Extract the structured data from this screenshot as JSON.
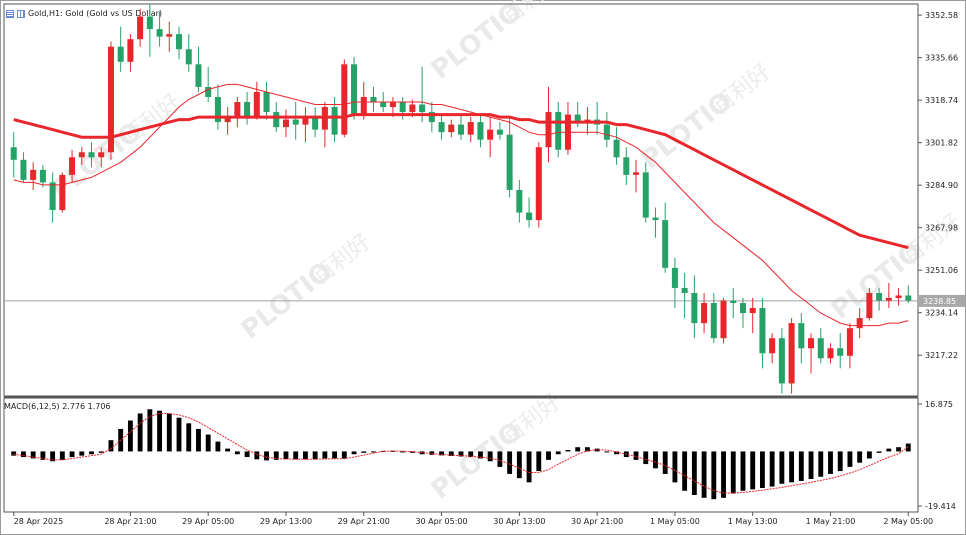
{
  "header": {
    "title": "Gold,H1:  Gold (Gold vs US Dollar)",
    "icons": [
      "list-icon",
      "bars-icon"
    ]
  },
  "watermark": {
    "brand": "PLOTIO",
    "cn": "百利好"
  },
  "macd": {
    "label": "MACD(6,12,5) 2.776 1.706",
    "histogram_color": "#000000",
    "signal_color": "#e8262c"
  },
  "colors": {
    "bull": "#e8262c",
    "bear": "#26a269",
    "ma_slow": "#e8262c",
    "ma_fast": "#e8262c",
    "price_line": "#a0a0a0",
    "grid": "#dddddd"
  },
  "chart_data": {
    "type": "candlestick",
    "price_axis": {
      "ticks": [
        3352.58,
        3335.66,
        3318.74,
        3301.82,
        3284.9,
        3267.98,
        3251.06,
        3234.14,
        3217.22
      ],
      "tick_labels": [
        "3352.58",
        "3335.66",
        "3318.74",
        "3301.82",
        "3284.90",
        "3267.98",
        "3251.06",
        "3234.14",
        "3217.22"
      ],
      "ylim": [
        3201,
        3357
      ]
    },
    "current_price": 3238.85,
    "current_price_label": "3238.85",
    "time_axis": {
      "labels": [
        "28 Apr 2025",
        "28 Apr 21:00",
        "29 Apr 05:00",
        "29 Apr 13:00",
        "29 Apr 21:00",
        "30 Apr 05:00",
        "30 Apr 13:00",
        "30 Apr 21:00",
        "1 May 05:00",
        "1 May 13:00",
        "1 May 21:00",
        "2 May 05:00"
      ],
      "label_bar_index": [
        0,
        12,
        20,
        28,
        36,
        44,
        52,
        60,
        68,
        76,
        84,
        92
      ]
    },
    "candles": [
      {
        "o": 3300,
        "h": 3306,
        "l": 3288,
        "c": 3295
      },
      {
        "o": 3295,
        "h": 3298,
        "l": 3286,
        "c": 3287
      },
      {
        "o": 3287,
        "h": 3294,
        "l": 3283,
        "c": 3291
      },
      {
        "o": 3291,
        "h": 3293,
        "l": 3284,
        "c": 3286
      },
      {
        "o": 3286,
        "h": 3290,
        "l": 3270,
        "c": 3275
      },
      {
        "o": 3275,
        "h": 3290,
        "l": 3274,
        "c": 3289
      },
      {
        "o": 3289,
        "h": 3299,
        "l": 3286,
        "c": 3296
      },
      {
        "o": 3296,
        "h": 3300,
        "l": 3293,
        "c": 3298
      },
      {
        "o": 3298,
        "h": 3302,
        "l": 3292,
        "c": 3296
      },
      {
        "o": 3296,
        "h": 3300,
        "l": 3292,
        "c": 3298
      },
      {
        "o": 3298,
        "h": 3342,
        "l": 3295,
        "c": 3340
      },
      {
        "o": 3340,
        "h": 3348,
        "l": 3330,
        "c": 3334
      },
      {
        "o": 3334,
        "h": 3345,
        "l": 3330,
        "c": 3343
      },
      {
        "o": 3343,
        "h": 3355,
        "l": 3340,
        "c": 3352
      },
      {
        "o": 3352,
        "h": 3357,
        "l": 3336,
        "c": 3347
      },
      {
        "o": 3347,
        "h": 3354,
        "l": 3340,
        "c": 3344
      },
      {
        "o": 3344,
        "h": 3350,
        "l": 3338,
        "c": 3345
      },
      {
        "o": 3345,
        "h": 3348,
        "l": 3335,
        "c": 3339
      },
      {
        "o": 3339,
        "h": 3345,
        "l": 3330,
        "c": 3333
      },
      {
        "o": 3333,
        "h": 3340,
        "l": 3322,
        "c": 3324
      },
      {
        "o": 3324,
        "h": 3332,
        "l": 3318,
        "c": 3320
      },
      {
        "o": 3320,
        "h": 3325,
        "l": 3307,
        "c": 3310
      },
      {
        "o": 3310,
        "h": 3316,
        "l": 3305,
        "c": 3312
      },
      {
        "o": 3312,
        "h": 3320,
        "l": 3308,
        "c": 3318
      },
      {
        "o": 3318,
        "h": 3322,
        "l": 3309,
        "c": 3312
      },
      {
        "o": 3312,
        "h": 3326,
        "l": 3311,
        "c": 3322
      },
      {
        "o": 3322,
        "h": 3326,
        "l": 3311,
        "c": 3314
      },
      {
        "o": 3314,
        "h": 3318,
        "l": 3306,
        "c": 3308
      },
      {
        "o": 3308,
        "h": 3315,
        "l": 3304,
        "c": 3311
      },
      {
        "o": 3311,
        "h": 3318,
        "l": 3303,
        "c": 3309
      },
      {
        "o": 3309,
        "h": 3316,
        "l": 3302,
        "c": 3312
      },
      {
        "o": 3312,
        "h": 3316,
        "l": 3304,
        "c": 3307
      },
      {
        "o": 3307,
        "h": 3318,
        "l": 3300,
        "c": 3316
      },
      {
        "o": 3316,
        "h": 3320,
        "l": 3302,
        "c": 3305
      },
      {
        "o": 3305,
        "h": 3335,
        "l": 3304,
        "c": 3333
      },
      {
        "o": 3333,
        "h": 3336,
        "l": 3311,
        "c": 3313
      },
      {
        "o": 3313,
        "h": 3326,
        "l": 3311,
        "c": 3320
      },
      {
        "o": 3320,
        "h": 3324,
        "l": 3314,
        "c": 3318
      },
      {
        "o": 3318,
        "h": 3322,
        "l": 3314,
        "c": 3316
      },
      {
        "o": 3316,
        "h": 3320,
        "l": 3312,
        "c": 3318
      },
      {
        "o": 3318,
        "h": 3320,
        "l": 3311,
        "c": 3314
      },
      {
        "o": 3314,
        "h": 3319,
        "l": 3312,
        "c": 3317
      },
      {
        "o": 3317,
        "h": 3332,
        "l": 3310,
        "c": 3314
      },
      {
        "o": 3314,
        "h": 3318,
        "l": 3306,
        "c": 3310
      },
      {
        "o": 3310,
        "h": 3313,
        "l": 3303,
        "c": 3306
      },
      {
        "o": 3306,
        "h": 3311,
        "l": 3304,
        "c": 3309
      },
      {
        "o": 3309,
        "h": 3313,
        "l": 3303,
        "c": 3305
      },
      {
        "o": 3305,
        "h": 3312,
        "l": 3302,
        "c": 3310
      },
      {
        "o": 3310,
        "h": 3313,
        "l": 3300,
        "c": 3303
      },
      {
        "o": 3303,
        "h": 3312,
        "l": 3296,
        "c": 3307
      },
      {
        "o": 3307,
        "h": 3310,
        "l": 3303,
        "c": 3305
      },
      {
        "o": 3305,
        "h": 3312,
        "l": 3280,
        "c": 3283
      },
      {
        "o": 3283,
        "h": 3287,
        "l": 3270,
        "c": 3274
      },
      {
        "o": 3274,
        "h": 3280,
        "l": 3268,
        "c": 3271
      },
      {
        "o": 3271,
        "h": 3302,
        "l": 3268,
        "c": 3300
      },
      {
        "o": 3300,
        "h": 3324,
        "l": 3294,
        "c": 3314
      },
      {
        "o": 3314,
        "h": 3318,
        "l": 3296,
        "c": 3299
      },
      {
        "o": 3299,
        "h": 3318,
        "l": 3297,
        "c": 3313
      },
      {
        "o": 3313,
        "h": 3318,
        "l": 3308,
        "c": 3310
      },
      {
        "o": 3310,
        "h": 3316,
        "l": 3305,
        "c": 3311
      },
      {
        "o": 3311,
        "h": 3318,
        "l": 3305,
        "c": 3309
      },
      {
        "o": 3309,
        "h": 3314,
        "l": 3300,
        "c": 3303
      },
      {
        "o": 3303,
        "h": 3308,
        "l": 3293,
        "c": 3296
      },
      {
        "o": 3296,
        "h": 3300,
        "l": 3285,
        "c": 3289
      },
      {
        "o": 3289,
        "h": 3295,
        "l": 3282,
        "c": 3290
      },
      {
        "o": 3290,
        "h": 3294,
        "l": 3270,
        "c": 3272
      },
      {
        "o": 3272,
        "h": 3276,
        "l": 3264,
        "c": 3271
      },
      {
        "o": 3271,
        "h": 3278,
        "l": 3250,
        "c": 3252
      },
      {
        "o": 3252,
        "h": 3256,
        "l": 3236,
        "c": 3244
      },
      {
        "o": 3244,
        "h": 3250,
        "l": 3232,
        "c": 3242
      },
      {
        "o": 3242,
        "h": 3249,
        "l": 3224,
        "c": 3230
      },
      {
        "o": 3230,
        "h": 3242,
        "l": 3226,
        "c": 3238
      },
      {
        "o": 3238,
        "h": 3242,
        "l": 3222,
        "c": 3224
      },
      {
        "o": 3224,
        "h": 3240,
        "l": 3222,
        "c": 3239
      },
      {
        "o": 3239,
        "h": 3244,
        "l": 3232,
        "c": 3238
      },
      {
        "o": 3238,
        "h": 3240,
        "l": 3228,
        "c": 3234
      },
      {
        "o": 3234,
        "h": 3240,
        "l": 3226,
        "c": 3236
      },
      {
        "o": 3236,
        "h": 3240,
        "l": 3212,
        "c": 3218
      },
      {
        "o": 3218,
        "h": 3226,
        "l": 3214,
        "c": 3224
      },
      {
        "o": 3224,
        "h": 3228,
        "l": 3202,
        "c": 3206
      },
      {
        "o": 3206,
        "h": 3232,
        "l": 3202,
        "c": 3230
      },
      {
        "o": 3230,
        "h": 3234,
        "l": 3214,
        "c": 3220
      },
      {
        "o": 3220,
        "h": 3226,
        "l": 3210,
        "c": 3224
      },
      {
        "o": 3224,
        "h": 3228,
        "l": 3214,
        "c": 3216
      },
      {
        "o": 3216,
        "h": 3222,
        "l": 3214,
        "c": 3220
      },
      {
        "o": 3220,
        "h": 3226,
        "l": 3212,
        "c": 3217
      },
      {
        "o": 3217,
        "h": 3230,
        "l": 3212,
        "c": 3228
      },
      {
        "o": 3228,
        "h": 3236,
        "l": 3224,
        "c": 3232
      },
      {
        "o": 3232,
        "h": 3244,
        "l": 3231,
        "c": 3242
      },
      {
        "o": 3242,
        "h": 3244,
        "l": 3235,
        "c": 3239
      },
      {
        "o": 3239,
        "h": 3246,
        "l": 3236,
        "c": 3240
      },
      {
        "o": 3240,
        "h": 3244,
        "l": 3237,
        "c": 3241
      },
      {
        "o": 3241,
        "h": 3245,
        "l": 3238,
        "c": 3239
      }
    ],
    "ma_slow": [
      3311,
      3310,
      3309,
      3308,
      3307,
      3306,
      3305,
      3304,
      3304,
      3304,
      3304,
      3305,
      3306,
      3307,
      3308,
      3309,
      3310,
      3311,
      3311,
      3312,
      3312,
      3312,
      3312,
      3312,
      3312,
      3312,
      3312,
      3312,
      3312,
      3312,
      3312,
      3312,
      3312,
      3312,
      3312,
      3313,
      3313,
      3313,
      3313,
      3313,
      3313,
      3313,
      3313,
      3313,
      3313,
      3313,
      3313,
      3313,
      3313,
      3313,
      3312,
      3312,
      3311,
      3311,
      3310,
      3310,
      3310,
      3310,
      3310,
      3310,
      3310,
      3310,
      3309,
      3309,
      3308,
      3307,
      3306,
      3305,
      3303,
      3301,
      3299,
      3297,
      3295,
      3293,
      3291,
      3289,
      3287,
      3285,
      3283,
      3281,
      3279,
      3277,
      3275,
      3273,
      3271,
      3269,
      3267,
      3265,
      3264,
      3263,
      3262,
      3261,
      3260
    ],
    "ma_fast": [
      3287,
      3286,
      3286,
      3285,
      3285,
      3285,
      3286,
      3287,
      3288,
      3290,
      3292,
      3294,
      3297,
      3300,
      3304,
      3308,
      3312,
      3316,
      3319,
      3321,
      3323,
      3324,
      3325,
      3325,
      3324,
      3323,
      3322,
      3321,
      3320,
      3319,
      3318,
      3317,
      3317,
      3317,
      3317,
      3318,
      3318,
      3318,
      3318,
      3318,
      3318,
      3318,
      3318,
      3317,
      3317,
      3316,
      3315,
      3314,
      3313,
      3312,
      3311,
      3310,
      3308,
      3306,
      3305,
      3305,
      3306,
      3306,
      3306,
      3306,
      3306,
      3305,
      3304,
      3302,
      3300,
      3297,
      3294,
      3290,
      3286,
      3282,
      3278,
      3274,
      3270,
      3267,
      3264,
      3261,
      3258,
      3255,
      3251,
      3247,
      3243,
      3240,
      3237,
      3234,
      3232,
      3230,
      3229,
      3229,
      3229,
      3229,
      3230,
      3230,
      3231
    ],
    "macd_axis": {
      "ticks": [
        16.875,
        -19.414
      ],
      "tick_labels": [
        "16.875",
        "-19.414"
      ],
      "ylim": [
        -19.414,
        16.875
      ]
    },
    "macd_hist": [
      -1.5,
      -2,
      -2.5,
      -3,
      -3.5,
      -3,
      -2,
      -1.5,
      -1,
      -0.5,
      4,
      8,
      11,
      13.5,
      15,
      14.5,
      13.5,
      12,
      10,
      8,
      6,
      3.5,
      1,
      -1,
      -2,
      -2.8,
      -3.2,
      -3,
      -2.8,
      -2.8,
      -2.8,
      -2.8,
      -2.5,
      -2.5,
      -2.5,
      -1,
      -0.5,
      0,
      0.2,
      0.2,
      0,
      -0.5,
      -1,
      -1.2,
      -1.4,
      -1.6,
      -1.8,
      -2,
      -2.5,
      -3.5,
      -5.5,
      -8,
      -9.5,
      -11,
      -7,
      -3,
      -1,
      0.5,
      1.5,
      1.5,
      1,
      0,
      -1,
      -2,
      -3,
      -4.5,
      -6,
      -8,
      -11,
      -14,
      -15.5,
      -16.5,
      -17,
      -16.5,
      -15,
      -14,
      -13.5,
      -13,
      -12.5,
      -11.5,
      -11,
      -10.5,
      -9.8,
      -9,
      -8,
      -7,
      -5.5,
      -4,
      -2.5,
      -0.5,
      1,
      1.5,
      2.8
    ],
    "macd_signal": [
      -1,
      -1.5,
      -2,
      -2.5,
      -3,
      -3,
      -2.5,
      -2,
      -1.5,
      -1,
      1,
      4,
      7,
      10,
      12.5,
      13.5,
      13.5,
      13,
      12,
      10.5,
      8.5,
      6.5,
      4.5,
      2.5,
      0.5,
      -1,
      -2,
      -2.5,
      -2.7,
      -2.8,
      -2.8,
      -2.8,
      -2.7,
      -2.6,
      -2.6,
      -2,
      -1.3,
      -0.6,
      0,
      0.2,
      0.1,
      -0.1,
      -0.4,
      -0.8,
      -1.1,
      -1.3,
      -1.5,
      -1.7,
      -2,
      -2.4,
      -3.2,
      -4.5,
      -6,
      -7.5,
      -7.5,
      -6.5,
      -4.5,
      -2.8,
      -1,
      0.2,
      0.6,
      0.5,
      -0.2,
      -1,
      -1.8,
      -2.8,
      -3.8,
      -5,
      -6.8,
      -8.6,
      -10.5,
      -12.3,
      -14,
      -14.8,
      -14.8,
      -14.6,
      -14.2,
      -13.8,
      -13.3,
      -12.8,
      -12.2,
      -11.6,
      -11,
      -10.3,
      -9.6,
      -8.7,
      -7.7,
      -6.5,
      -5,
      -3.5,
      -2,
      -0.8,
      1.7
    ]
  }
}
